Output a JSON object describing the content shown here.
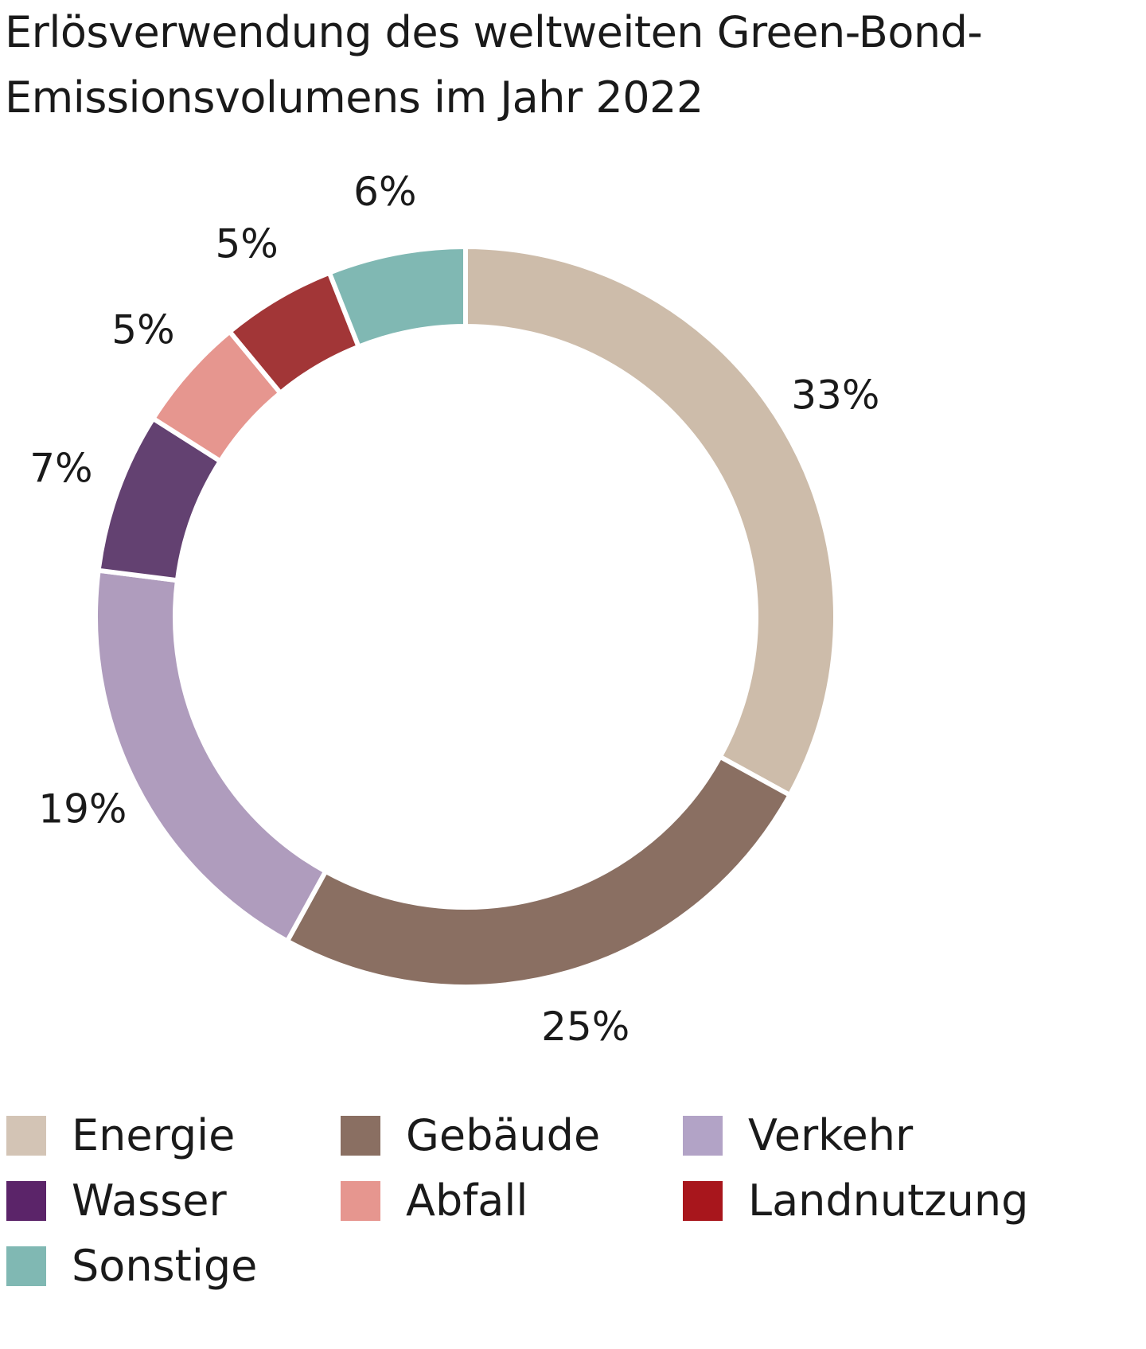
{
  "chart_data": {
    "type": "pie",
    "variant": "donut",
    "title": "Erlösverwendung des weltweiten Green-Bond-Emissionsvolumens im Jahr 2022",
    "unit": "%",
    "slices": [
      {
        "name": "Energie",
        "value": 33,
        "label": "33%",
        "color": "#CDBCAA"
      },
      {
        "name": "Gebäude",
        "value": 25,
        "label": "25%",
        "color": "#8A6F62"
      },
      {
        "name": "Verkehr",
        "value": 19,
        "label": "19%",
        "color": "#AF9CBD"
      },
      {
        "name": "Wasser",
        "value": 7,
        "label": "7%",
        "color": "#634171"
      },
      {
        "name": "Abfall",
        "value": 5,
        "label": "5%",
        "color": "#E6968F"
      },
      {
        "name": "Landnutzung",
        "value": 5,
        "label": "5%",
        "color": "#A23637"
      },
      {
        "name": "Sonstige",
        "value": 6,
        "label": "6%",
        "color": "#80B8B3"
      }
    ],
    "legend_colors": {
      "Energie": "#D3C4B5",
      "Gebäude": "#8A6F62",
      "Verkehr": "#B2A3C6",
      "Wasser": "#5B2469",
      "Abfall": "#E6968F",
      "Landnutzung": "#A8161C",
      "Sonstige": "#80B8B3"
    },
    "legend_position": "bottom",
    "direction": "clockwise from top"
  }
}
